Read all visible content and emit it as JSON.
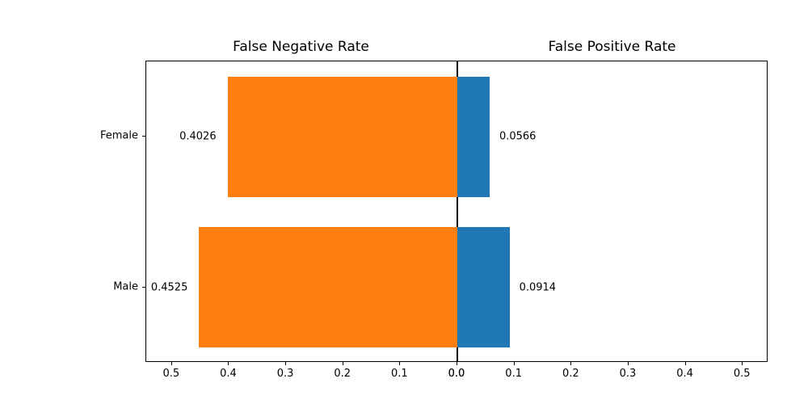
{
  "chart_data": {
    "type": "bar",
    "variant": "diverging-horizontal",
    "categories": [
      "Female",
      "Male"
    ],
    "series": [
      {
        "name": "False Negative Rate",
        "side": "left",
        "color": "#ff7f0e",
        "values": [
          0.4026,
          0.4525
        ]
      },
      {
        "name": "False Positive Rate",
        "side": "right",
        "color": "#1f77b4",
        "values": [
          0.0566,
          0.0914
        ]
      }
    ],
    "value_labels": {
      "left": [
        "0.4026",
        "0.4525"
      ],
      "right": [
        "0.0566",
        "0.0914"
      ]
    },
    "left_title": "False Negative Rate",
    "right_title": "False Positive Rate",
    "x_ticks_left": [
      0.5,
      0.4,
      0.3,
      0.2,
      0.1,
      0.0
    ],
    "x_ticks_right": [
      0.0,
      0.1,
      0.2,
      0.3,
      0.4,
      0.5
    ],
    "xlim": [
      0,
      0.545
    ],
    "bar_height_frac": 0.8,
    "grid": false,
    "legend": false
  }
}
